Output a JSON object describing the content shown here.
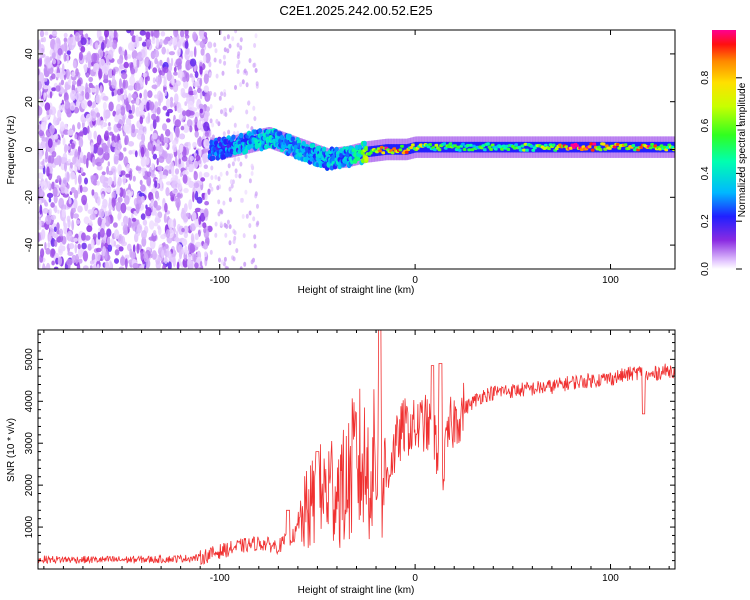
{
  "title": "C2E1.2025.242.00.52.E25",
  "chart_data": [
    {
      "type": "heatmap",
      "xlabel": "Height of straight line (km)",
      "ylabel": "Frequency (Hz)",
      "xlim": [
        -193,
        133
      ],
      "ylim": [
        -50,
        50
      ],
      "xticks": [
        -100,
        0,
        100
      ],
      "xtick_labels": [
        "-100",
        "0",
        "100"
      ],
      "yticks": [
        -40,
        -20,
        0,
        20,
        40
      ],
      "ytick_labels": [
        "-40",
        "-20",
        "0",
        "20",
        "40"
      ],
      "colorbar": {
        "label": "Normalized spectral amplitude",
        "range": [
          0,
          1
        ],
        "ticks": [
          0,
          0.2,
          0.4,
          0.6,
          0.8
        ],
        "tick_labels": [
          "0.0",
          "0.2",
          "0.4",
          "0.6",
          "0.8"
        ]
      },
      "ridge_profile": {
        "x_km": [
          -105,
          -95,
          -85,
          -75,
          -65,
          -55,
          -45,
          -35,
          -25,
          -15,
          -5,
          0,
          10,
          20,
          30,
          40,
          50,
          60,
          70,
          80,
          90,
          100,
          110,
          120,
          130
        ],
        "center_hz": [
          0,
          1,
          3,
          5,
          2,
          -1,
          -4,
          -3,
          -1,
          0,
          0,
          1,
          1,
          1,
          1,
          1,
          1,
          1,
          1,
          1,
          1,
          1,
          1,
          1,
          1
        ],
        "amplitude": [
          0.25,
          0.3,
          0.35,
          0.4,
          0.35,
          0.35,
          0.35,
          0.35,
          0.6,
          0.95,
          0.8,
          0.7,
          0.6,
          0.5,
          0.5,
          0.55,
          0.55,
          0.6,
          0.7,
          0.95,
          0.9,
          0.85,
          0.7,
          0.9,
          0.6
        ]
      },
      "noise_region_km": [
        -193,
        -105
      ],
      "sparse_region_km": [
        -105,
        -80
      ]
    },
    {
      "type": "line",
      "xlabel": "Height of straight line (km)",
      "ylabel": "SNR (10 * v/v)",
      "xlim": [
        -193,
        133
      ],
      "ylim": [
        0,
        5700
      ],
      "xticks": [
        -100,
        0,
        100
      ],
      "xtick_labels": [
        "-100",
        "0",
        "100"
      ],
      "yticks": [
        1000,
        2000,
        3000,
        4000,
        5000
      ],
      "ytick_labels": [
        "1000",
        "2000",
        "3000",
        "4000",
        "5000"
      ],
      "color": "#f03030",
      "series": [
        {
          "name": "SNR",
          "x": [
            -193,
            -160,
            -130,
            -110,
            -100,
            -90,
            -80,
            -70,
            -62,
            -55,
            -48,
            -42,
            -36,
            -30,
            -25,
            -20,
            -16,
            -12,
            -6,
            0,
            5,
            10,
            14,
            18,
            22,
            26,
            30,
            35,
            40,
            45,
            50,
            60,
            70,
            80,
            90,
            100,
            110,
            115,
            118,
            120,
            125,
            133
          ],
          "y": [
            230,
            220,
            230,
            270,
            420,
            540,
            620,
            540,
            800,
            1400,
            1750,
            2000,
            1900,
            2600,
            2350,
            2500,
            2000,
            2650,
            3400,
            3350,
            3500,
            3100,
            2300,
            3400,
            3650,
            3850,
            4000,
            4150,
            4200,
            4250,
            4250,
            4300,
            4350,
            4450,
            4500,
            4550,
            4650,
            4700,
            4600,
            4600,
            4700,
            4750
          ]
        }
      ],
      "spikes": [
        {
          "x": -18,
          "y": 5700
        },
        {
          "x": 13,
          "y": 4900
        },
        {
          "x": 9,
          "y": 4850
        },
        {
          "x": 117,
          "y": 3700
        },
        {
          "x": -65,
          "y": 1400
        },
        {
          "x": -50,
          "y": 2800
        }
      ]
    }
  ]
}
